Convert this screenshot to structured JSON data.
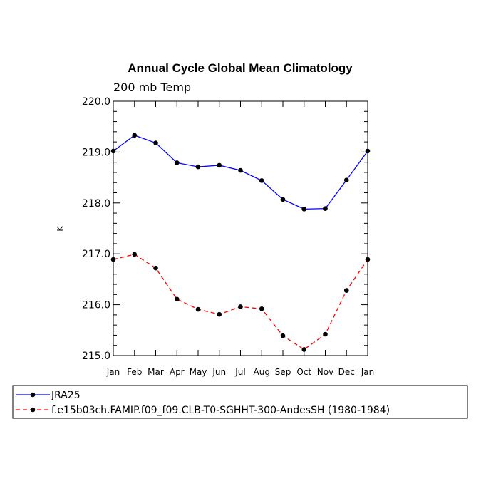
{
  "chart_data": {
    "type": "line",
    "title": "Annual Cycle Global Mean Climatology",
    "subtitle": "200 mb Temp",
    "ylabel": "K",
    "xlabel": "",
    "categories": [
      "Jan",
      "Feb",
      "Mar",
      "Apr",
      "May",
      "Jun",
      "Jul",
      "Aug",
      "Sep",
      "Oct",
      "Nov",
      "Dec",
      "Jan"
    ],
    "ylim": [
      215.0,
      220.0
    ],
    "yticks": [
      "215.0",
      "216.0",
      "217.0",
      "218.0",
      "219.0",
      "220.0"
    ],
    "grid": false,
    "legend_position": "bottom",
    "series": [
      {
        "name": "JRA25",
        "color": "#0000ff",
        "dash": "solid",
        "values": [
          219.02,
          219.33,
          219.18,
          218.79,
          218.71,
          218.74,
          218.64,
          218.44,
          218.07,
          217.88,
          217.89,
          218.45,
          219.02
        ]
      },
      {
        "name": "f.e15b03ch.FAMIP.f09_f09.CLB-T0-SGHHT-300-AndesSH (1980-1984)",
        "color": "#ff0000",
        "dash": "dashed",
        "values": [
          216.89,
          216.99,
          216.72,
          216.11,
          215.91,
          215.81,
          215.96,
          215.92,
          215.39,
          215.12,
          215.42,
          216.28,
          216.89
        ]
      }
    ]
  }
}
